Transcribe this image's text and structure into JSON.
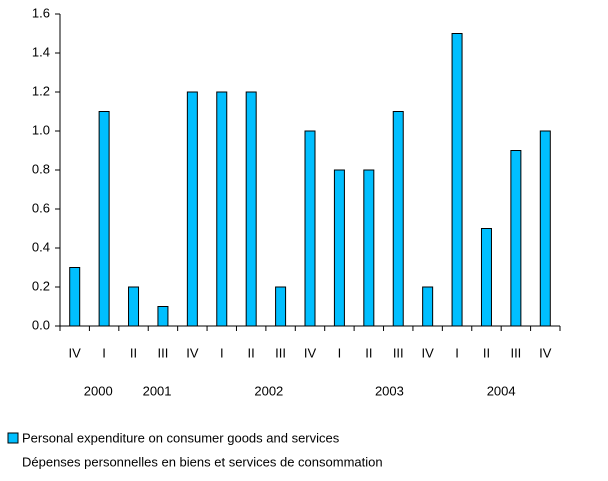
{
  "chart_data": {
    "type": "bar",
    "categories": [
      "IV",
      "I",
      "II",
      "III",
      "IV",
      "I",
      "II",
      "III",
      "IV",
      "I",
      "II",
      "III",
      "IV",
      "I",
      "II",
      "III",
      "IV"
    ],
    "years": [
      "2000",
      "2001",
      "2002",
      "2003",
      "2004"
    ],
    "series": [
      {
        "name": "Personal expenditure on consumer goods and services",
        "name_fr": "Dépenses personnelles en biens et services de consommation",
        "color": "#00bfff",
        "values": [
          0.3,
          1.1,
          0.2,
          0.1,
          1.2,
          1.2,
          1.2,
          0.2,
          1.0,
          0.8,
          0.8,
          1.1,
          0.2,
          1.5,
          0.5,
          0.9,
          1.0
        ]
      }
    ],
    "ylim": [
      0,
      1.6
    ],
    "yticks": [
      {
        "value": 0,
        "label": "0.0"
      },
      {
        "value": 0.2,
        "label": "0.2"
      },
      {
        "value": 0.4,
        "label": "0.4"
      },
      {
        "value": 0.6,
        "label": "0.6"
      },
      {
        "value": 0.8,
        "label": "0.8"
      },
      {
        "value": 1,
        "label": "1.0"
      },
      {
        "value": 1.2,
        "label": "1.2"
      },
      {
        "value": 1.4,
        "label": "1.4"
      },
      {
        "value": 1.6,
        "label": "1.6"
      }
    ],
    "grid": false
  }
}
